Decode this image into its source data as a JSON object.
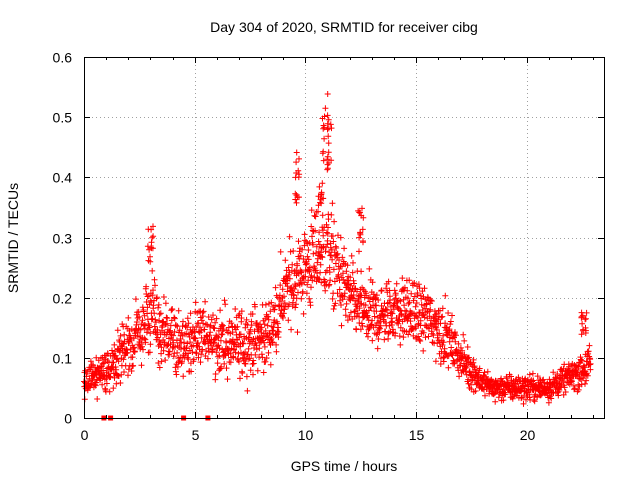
{
  "chart_data": {
    "type": "scatter",
    "title": "Day 304 of 2020, SRMTID for receiver cibg",
    "xlabel": "GPS time / hours",
    "ylabel": "SRMTID / TECUs",
    "xlim": [
      0,
      23.5
    ],
    "ylim": [
      0,
      0.6
    ],
    "grid": true,
    "x_ticks": [
      0,
      5,
      10,
      15,
      20
    ],
    "x_tick_labels": [
      "0",
      "5",
      "10",
      "15",
      "20"
    ],
    "y_ticks": [
      0,
      0.1,
      0.2,
      0.3,
      0.4,
      0.5,
      0.6
    ],
    "y_tick_labels": [
      "0",
      "0.1",
      "0.2",
      "0.3",
      "0.4",
      "0.5",
      "0.6"
    ],
    "marker": "plus",
    "color": "#ff0000",
    "trend": {
      "description": "Envelope of the SRMTID scatter (approximate mean level vs. hour)",
      "x": [
        0,
        0.5,
        1,
        1.5,
        2,
        2.5,
        3,
        3.5,
        4,
        4.5,
        5,
        5.5,
        6,
        6.5,
        7,
        7.5,
        8,
        8.5,
        9,
        9.5,
        10,
        10.5,
        11,
        11.5,
        12,
        12.5,
        13,
        13.5,
        14,
        14.5,
        15,
        15.5,
        16,
        16.5,
        17,
        17.5,
        18,
        18.5,
        19,
        19.5,
        20,
        20.5,
        21,
        21.5,
        22,
        22.5,
        22.9
      ],
      "y": [
        0.06,
        0.07,
        0.08,
        0.1,
        0.12,
        0.14,
        0.17,
        0.14,
        0.13,
        0.12,
        0.13,
        0.14,
        0.13,
        0.12,
        0.12,
        0.13,
        0.13,
        0.15,
        0.2,
        0.23,
        0.25,
        0.27,
        0.28,
        0.24,
        0.2,
        0.18,
        0.17,
        0.17,
        0.18,
        0.18,
        0.17,
        0.17,
        0.15,
        0.13,
        0.1,
        0.08,
        0.06,
        0.05,
        0.05,
        0.05,
        0.05,
        0.05,
        0.05,
        0.06,
        0.07,
        0.08,
        0.09
      ],
      "spread": [
        0.03,
        0.03,
        0.03,
        0.04,
        0.04,
        0.05,
        0.06,
        0.05,
        0.05,
        0.05,
        0.05,
        0.05,
        0.05,
        0.05,
        0.05,
        0.05,
        0.05,
        0.05,
        0.06,
        0.07,
        0.07,
        0.08,
        0.08,
        0.07,
        0.06,
        0.05,
        0.05,
        0.05,
        0.05,
        0.05,
        0.05,
        0.05,
        0.05,
        0.04,
        0.03,
        0.03,
        0.02,
        0.02,
        0.02,
        0.02,
        0.02,
        0.02,
        0.02,
        0.02,
        0.02,
        0.03,
        0.03
      ]
    },
    "peaks": [
      {
        "x": 3.0,
        "y": 0.33
      },
      {
        "x": 9.6,
        "y": 0.45
      },
      {
        "x": 10.9,
        "y": 0.54
      },
      {
        "x": 11.1,
        "y": 0.5
      },
      {
        "x": 10.7,
        "y": 0.4
      },
      {
        "x": 12.5,
        "y": 0.35
      },
      {
        "x": 22.6,
        "y": 0.18
      }
    ],
    "zero_markers": {
      "x": [
        0.9,
        1.2,
        4.5,
        5.6
      ],
      "y": 0
    }
  }
}
